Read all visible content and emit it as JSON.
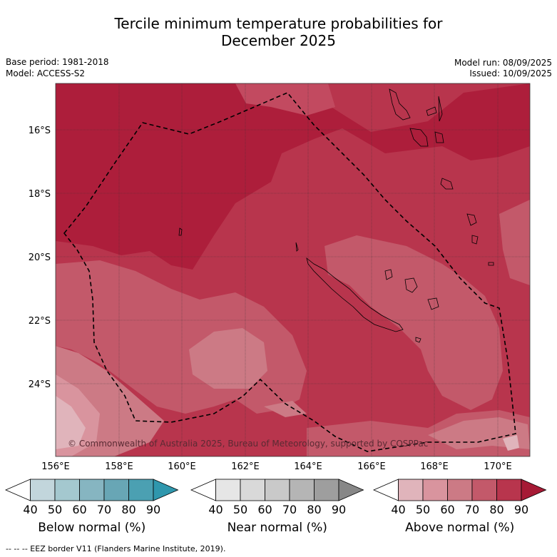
{
  "title_line1": "Tercile minimum temperature probabilities for",
  "title_line2": "December 2025",
  "base_period": "Base period: 1981-2018",
  "model": "Model: ACCESS-S2",
  "model_run": "Model run: 08/09/2025",
  "issued": "Issued: 10/09/2025",
  "copyright": "© Commonwealth of Australia 2025, Bureau of Meteorology, supported by COSPPac",
  "lat_labels": [
    "16°S",
    "18°S",
    "20°S",
    "22°S",
    "24°S"
  ],
  "lon_labels": [
    "156°E",
    "158°E",
    "160°E",
    "162°E",
    "164°E",
    "166°E",
    "168°E",
    "170°E"
  ],
  "colorbars": [
    {
      "name": "Below normal (%)",
      "ticks": [
        "40",
        "50",
        "60",
        "70",
        "80",
        "90"
      ],
      "colors": [
        "#ffffff",
        "#c2d6dc",
        "#a4c8cf",
        "#86b5c1",
        "#68a6b5",
        "#4ba0b2",
        "#2f97ad"
      ]
    },
    {
      "name": "Near normal (%)",
      "ticks": [
        "40",
        "50",
        "60",
        "70",
        "80",
        "90"
      ],
      "colors": [
        "#ffffff",
        "#e6e6e6",
        "#d9d9d9",
        "#c9c9c9",
        "#b5b5b5",
        "#9e9e9e",
        "#878787"
      ]
    },
    {
      "name": "Above normal (%)",
      "ticks": [
        "40",
        "50",
        "60",
        "70",
        "80",
        "90"
      ],
      "colors": [
        "#ffffff",
        "#e0b4bb",
        "#d9949e",
        "#cc7a85",
        "#c3596a",
        "#b8354d",
        "#a61a35"
      ]
    }
  ],
  "footer": "--  --  -- EEZ border V11 (Flanders Marine Institute, 2019)."
}
